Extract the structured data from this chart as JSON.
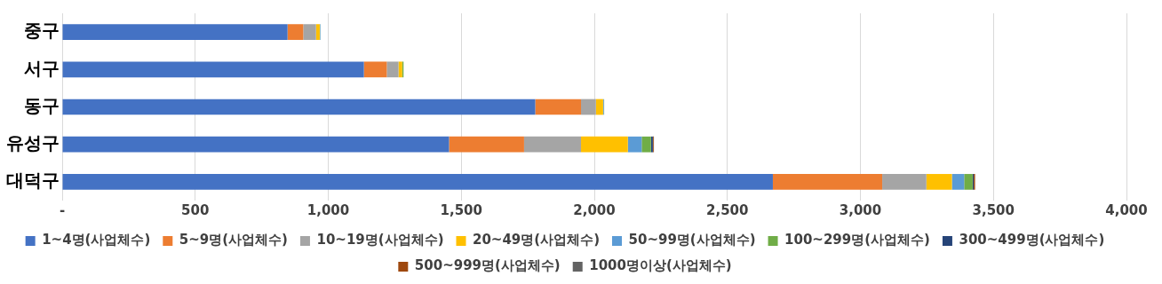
{
  "chart_data": {
    "type": "bar",
    "orientation": "horizontal",
    "stacked": true,
    "categories": [
      "중구",
      "서구",
      "동구",
      "유성구",
      "대덕구"
    ],
    "series": [
      {
        "name": "1~4명(사업체수)",
        "color": "#4472c4",
        "values": [
          847,
          1134,
          1778,
          1454,
          2671
        ]
      },
      {
        "name": "5~9명(사업체수)",
        "color": "#ed7d31",
        "values": [
          59,
          86,
          172,
          282,
          411
        ]
      },
      {
        "name": "10~19명(사업체수)",
        "color": "#a5a5a5",
        "values": [
          48,
          44,
          56,
          214,
          166
        ]
      },
      {
        "name": "20~49명(사업체수)",
        "color": "#ffc000",
        "values": [
          14,
          14,
          27,
          176,
          96
        ]
      },
      {
        "name": "50~99명(사업체수)",
        "color": "#5b9bd5",
        "values": [
          2,
          null,
          3,
          52,
          46
        ]
      },
      {
        "name": "100~299명(사업체수)",
        "color": "#70ad47",
        "values": [
          1,
          5,
          1,
          35,
          32
        ]
      },
      {
        "name": "300~499명(사업체수)",
        "color": "#264478",
        "values": [
          0,
          0,
          0,
          7,
          4
        ]
      },
      {
        "name": "500~999명(사업체수)",
        "color": "#9e480e",
        "values": [
          0,
          0,
          0,
          3,
          5
        ]
      },
      {
        "name": "1000명이상(사업체수)",
        "color": "#636363",
        "values": [
          0,
          0,
          0,
          1,
          null
        ]
      }
    ],
    "xlim": [
      0,
      4000
    ],
    "xticks": [
      {
        "value": 0,
        "label": "-"
      },
      {
        "value": 500,
        "label": "500"
      },
      {
        "value": 1000,
        "label": "1,000"
      },
      {
        "value": 1500,
        "label": "1,500"
      },
      {
        "value": 2000,
        "label": "2,000"
      },
      {
        "value": 2500,
        "label": "2,500"
      },
      {
        "value": 3000,
        "label": "3,000"
      },
      {
        "value": 3500,
        "label": "3,500"
      },
      {
        "value": 4000,
        "label": "4,000"
      }
    ],
    "grid": "x",
    "legend": "bottom"
  }
}
